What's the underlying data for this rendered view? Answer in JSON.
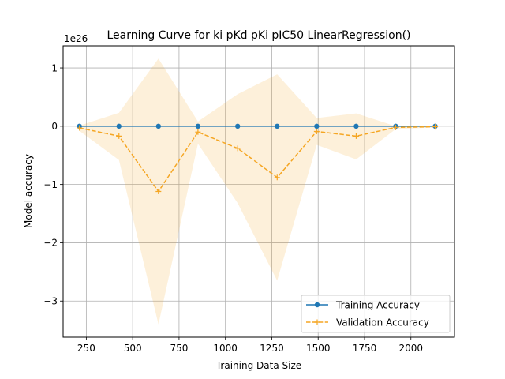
{
  "chart_data": {
    "type": "line",
    "title": "Learning Curve for ki pKd pKi pIC50 LinearRegression()",
    "xlabel": "Training Data Size",
    "ylabel": "Model accuracy",
    "offset_text": "1e26",
    "xlim": [
      125,
      2235
    ],
    "ylim": [
      -3.62,
      1.38
    ],
    "x_ticks": [
      250,
      500,
      750,
      1000,
      1250,
      1500,
      1750,
      2000
    ],
    "y_ticks": [
      1,
      0,
      -1,
      -2,
      -3
    ],
    "y_tick_labels": [
      "1",
      "0",
      "−1",
      "−2",
      "−3"
    ],
    "grid": true,
    "legend_position": "lower-right",
    "x": [
      213,
      426,
      639,
      852,
      1066,
      1279,
      1492,
      1705,
      1918,
      2131
    ],
    "series": [
      {
        "name": "Training Accuracy",
        "color": "#1f77b4",
        "marker": "circle",
        "line": "solid",
        "values": [
          0,
          0,
          0,
          0,
          0,
          0,
          0,
          0,
          0,
          0
        ]
      },
      {
        "name": "Validation Accuracy",
        "color": "#f5a623",
        "marker": "plus",
        "line": "dashed",
        "values": [
          -0.03,
          -0.17,
          -1.12,
          -0.1,
          -0.38,
          -0.88,
          -0.09,
          -0.17,
          -0.02,
          -0.01
        ],
        "band_upper": [
          0.01,
          0.23,
          1.16,
          0.08,
          0.55,
          0.89,
          0.14,
          0.22,
          0.0,
          0.0
        ],
        "band_lower": [
          -0.08,
          -0.58,
          -3.4,
          -0.3,
          -1.32,
          -2.65,
          -0.32,
          -0.57,
          -0.05,
          -0.02
        ]
      }
    ]
  }
}
